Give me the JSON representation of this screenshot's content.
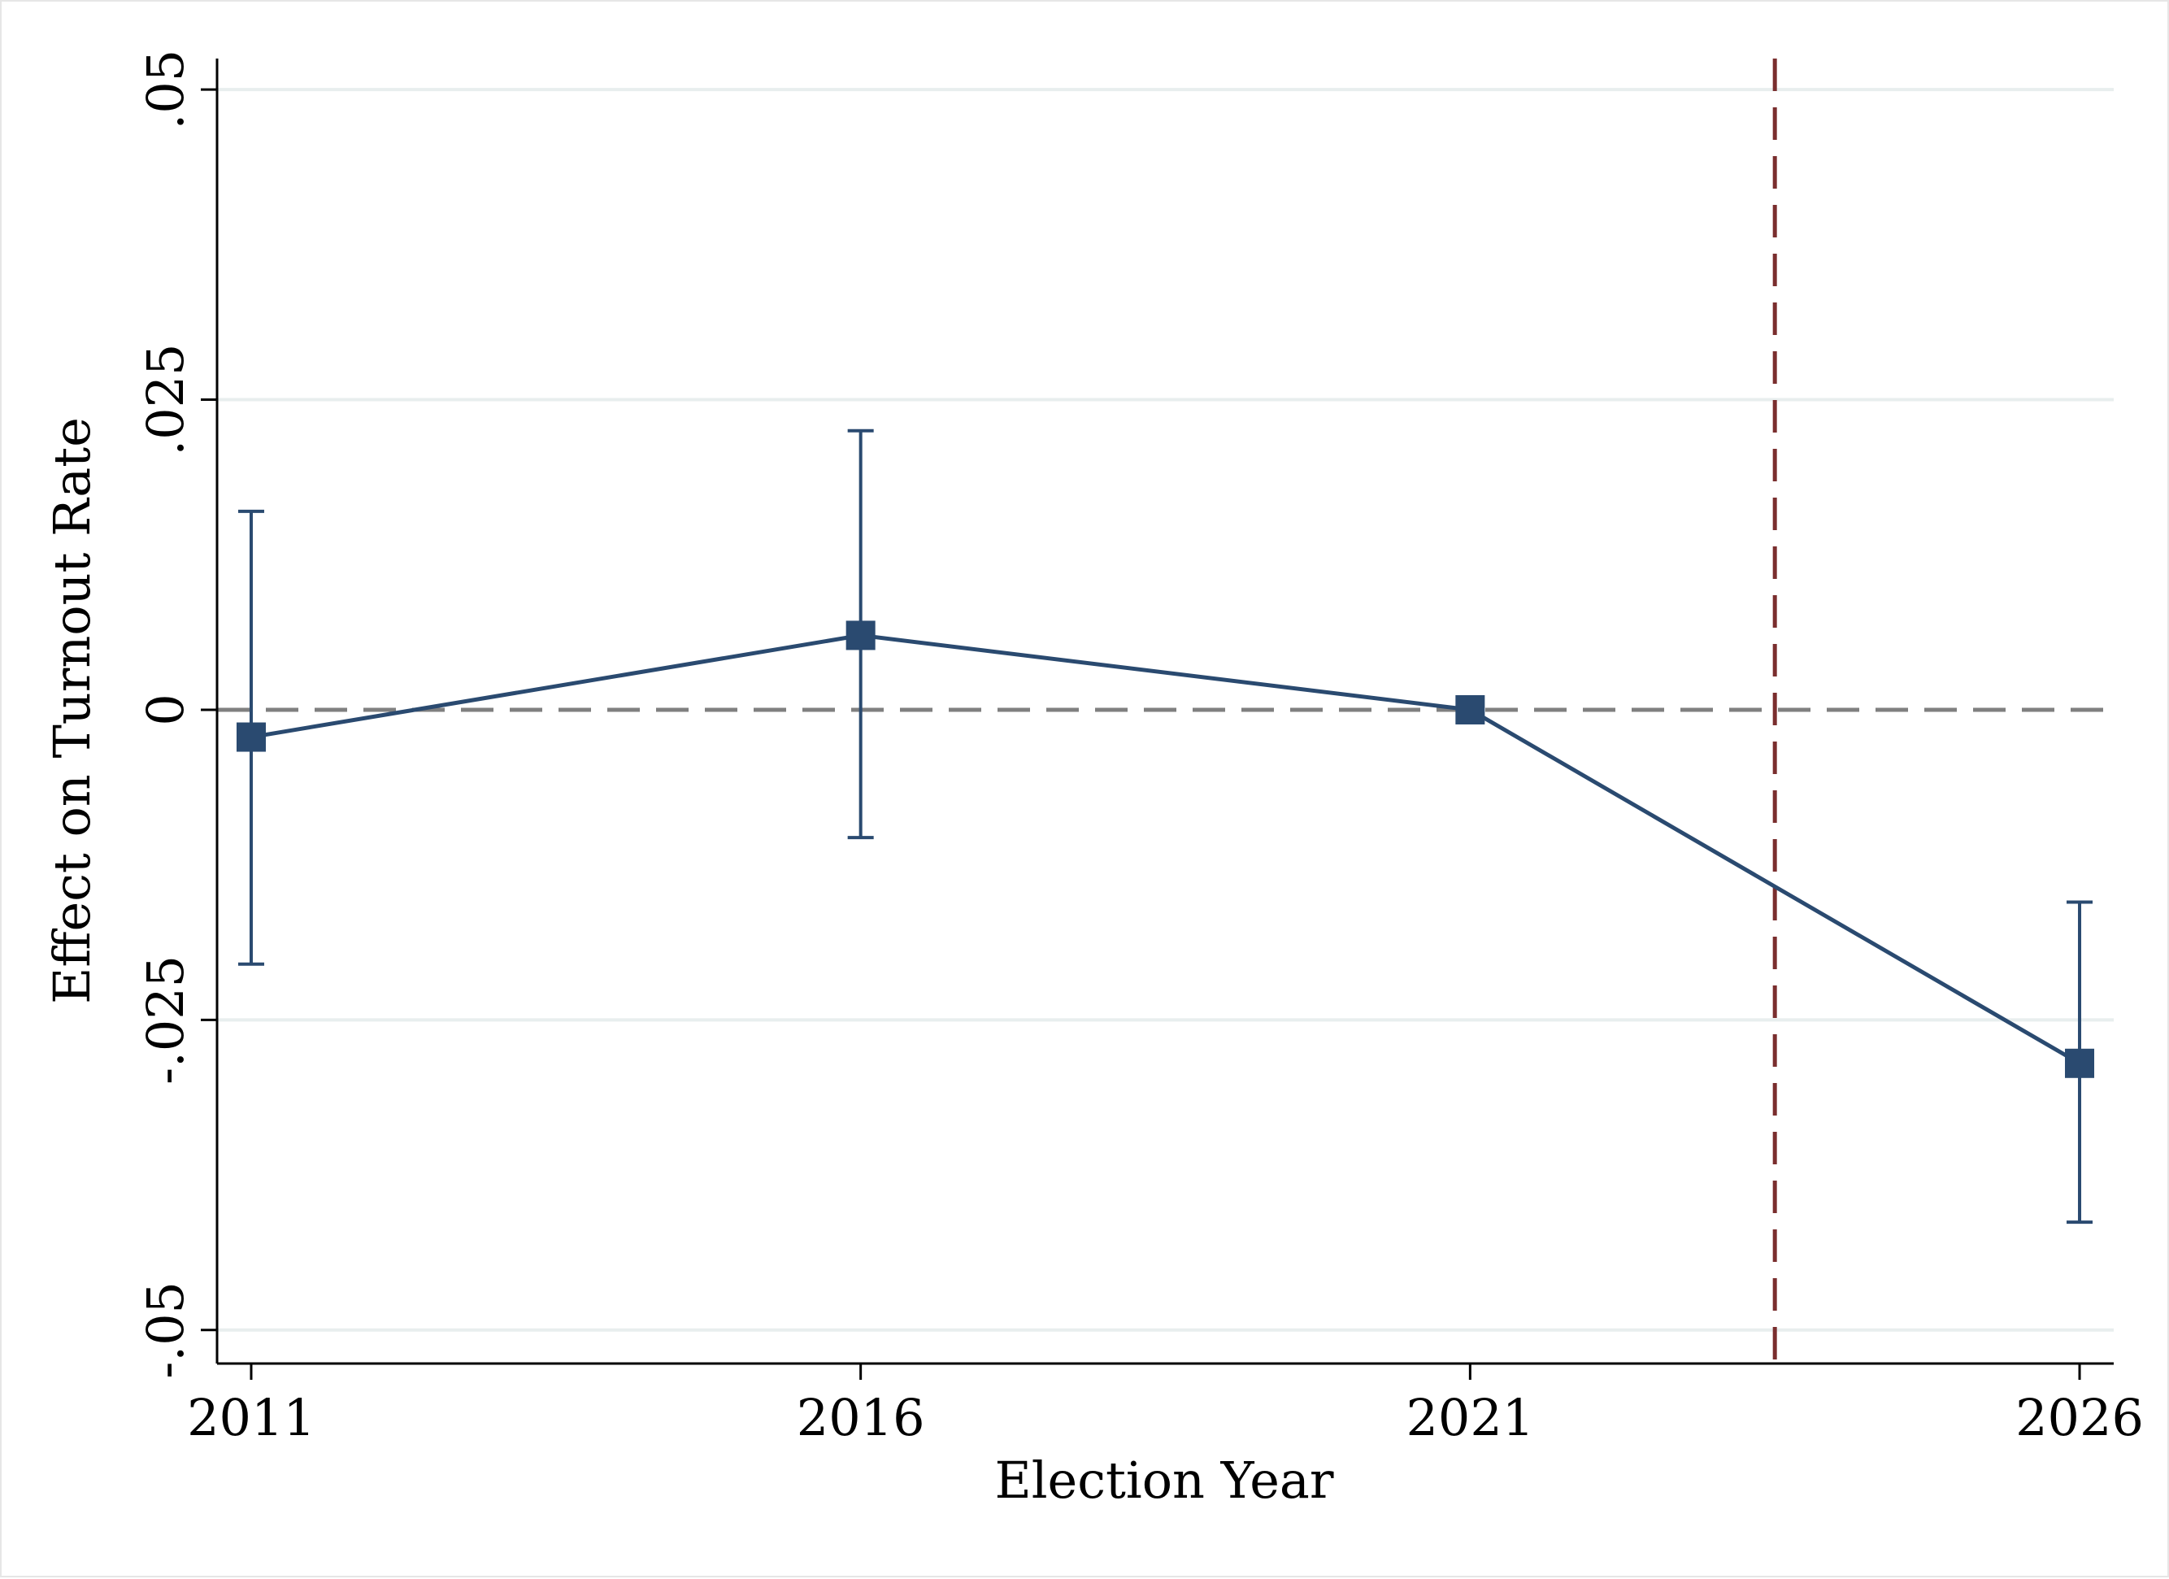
{
  "chart_data": {
    "type": "line",
    "title": "",
    "xlabel": "Election Year",
    "ylabel": "Effect on Turnout Rate",
    "x": [
      2011,
      2016,
      2021,
      2026
    ],
    "x_tick_labels": [
      "2011",
      "2016",
      "2021",
      "2026"
    ],
    "xlim": [
      2010.72,
      2026.28
    ],
    "ylim": [
      -0.0527,
      0.0525
    ],
    "y_ticks": [
      0.05,
      0.025,
      0,
      -0.025,
      -0.05
    ],
    "y_tick_labels": [
      ".05",
      ".025",
      "0",
      "-.025",
      "-.05"
    ],
    "grid": "horizontal",
    "series": [
      {
        "values": [
          -0.0022,
          0.006,
          0.0,
          -0.0285
        ],
        "ci_lower": [
          -0.0205,
          -0.0103,
          null,
          -0.0413
        ],
        "ci_upper": [
          0.016,
          0.0225,
          null,
          -0.0155
        ],
        "color": "#2a4a70",
        "marker": "square"
      }
    ],
    "reference_lines": [
      {
        "orientation": "horizontal",
        "value": 0,
        "style": "dashed",
        "color": "#808080"
      },
      {
        "orientation": "vertical",
        "value": 2023.5,
        "style": "dashed",
        "color": "#7a2e2e"
      }
    ]
  }
}
